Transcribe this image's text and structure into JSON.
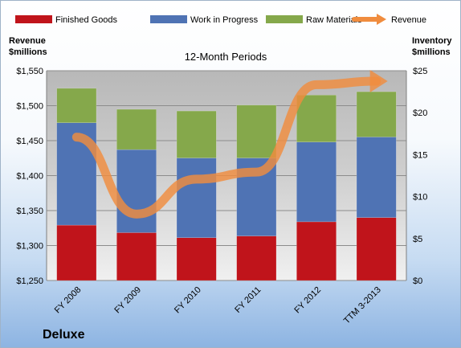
{
  "chart_data": {
    "type": "bar",
    "subtitle": "12-Month Periods",
    "categories": [
      "FY 2008",
      "FY 2009",
      "FY 2010",
      "FY 2011",
      "FY 2012",
      "TTM 3-2013"
    ],
    "series": [
      {
        "name": "Finished Goods",
        "axis": "right",
        "values": [
          6.6,
          5.7,
          5.1,
          5.3,
          7.0,
          7.5
        ],
        "color": "#c0141b"
      },
      {
        "name": "Work in Progress",
        "axis": "right",
        "values": [
          12.2,
          9.9,
          9.5,
          9.3,
          9.5,
          9.6
        ],
        "color": "#4f73b4"
      },
      {
        "name": "Raw Materials",
        "axis": "right",
        "values": [
          4.1,
          4.8,
          5.6,
          6.3,
          5.6,
          5.4
        ],
        "color": "#85a84b"
      },
      {
        "name": "Revenue",
        "axis": "left",
        "type": "line",
        "values": [
          1455,
          1345,
          1395,
          1405,
          1530,
          1535
        ],
        "color": "#f08c3e"
      }
    ],
    "y_left": {
      "label_line1": "Revenue",
      "label_line2": "$millions",
      "ylim": [
        1250,
        1550
      ],
      "ticks": [
        "$1,250",
        "$1,300",
        "$1,350",
        "$1,400",
        "$1,450",
        "$1,500",
        "$1,550"
      ]
    },
    "y_right": {
      "label_line1": "Inventory",
      "label_line2": "$millions",
      "ylim": [
        0,
        25
      ],
      "ticks": [
        "$0",
        "$5",
        "$10",
        "$15",
        "$20",
        "$25"
      ]
    },
    "grid": true,
    "legend_position": "top"
  },
  "footer": {
    "company": "Deluxe"
  }
}
